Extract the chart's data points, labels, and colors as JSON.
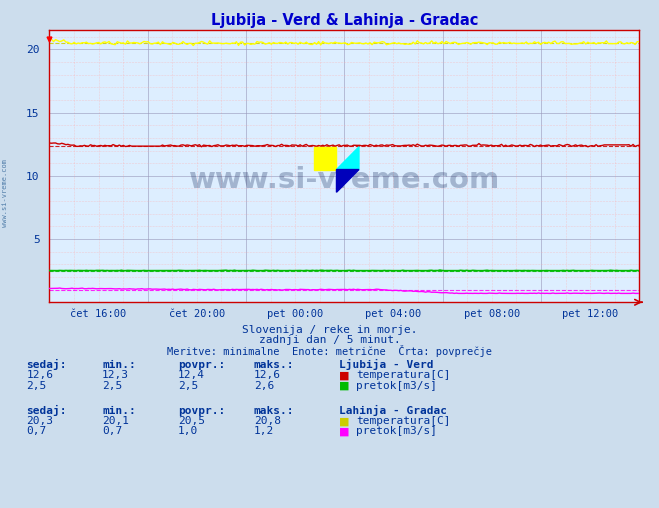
{
  "title": "Ljubija - Verd & Lahinja - Gradac",
  "title_color": "#0000cc",
  "background_color": "#ccdded",
  "plot_bg_color": "#ddeeff",
  "grid_major_color": "#9999bb",
  "grid_minor_color": "#ffaaaa",
  "xlabel_ticks": [
    "čet 16:00",
    "čet 20:00",
    "pet 00:00",
    "pet 04:00",
    "pet 08:00",
    "pet 12:00"
  ],
  "n_points": 288,
  "ylim": [
    0,
    21.5
  ],
  "yticks": [
    5,
    10,
    15,
    20
  ],
  "subtitle1": "Slovenija / reke in morje.",
  "subtitle2": "zadnji dan / 5 minut.",
  "subtitle3": "Meritve: minimalne  Enote: metrične  Črta: povprečje",
  "watermark_text": "www.si-vreme.com",
  "watermark_color": "#1a3060",
  "watermark_alpha": 0.3,
  "ljubija_temp_color": "#cc0000",
  "ljubija_temp_avg": 12.4,
  "ljubija_temp_min": 12.3,
  "ljubija_temp_max": 12.6,
  "ljubija_temp_sedaj": 12.6,
  "ljubija_flow_color": "#00bb00",
  "ljubija_flow_avg": 2.5,
  "ljubija_flow_min": 2.5,
  "ljubija_flow_max": 2.6,
  "ljubija_flow_sedaj": 2.5,
  "lahinja_temp_color": "#ffff00",
  "lahinja_temp_avg": 20.5,
  "lahinja_temp_min": 20.1,
  "lahinja_temp_max": 20.8,
  "lahinja_temp_sedaj": 20.3,
  "lahinja_flow_color": "#ff00ff",
  "lahinja_flow_avg": 1.0,
  "lahinja_flow_min": 0.7,
  "lahinja_flow_max": 1.2,
  "lahinja_flow_sedaj": 0.7,
  "axis_color": "#cc0000",
  "text_color": "#003399",
  "spine_color": "#cc0000"
}
